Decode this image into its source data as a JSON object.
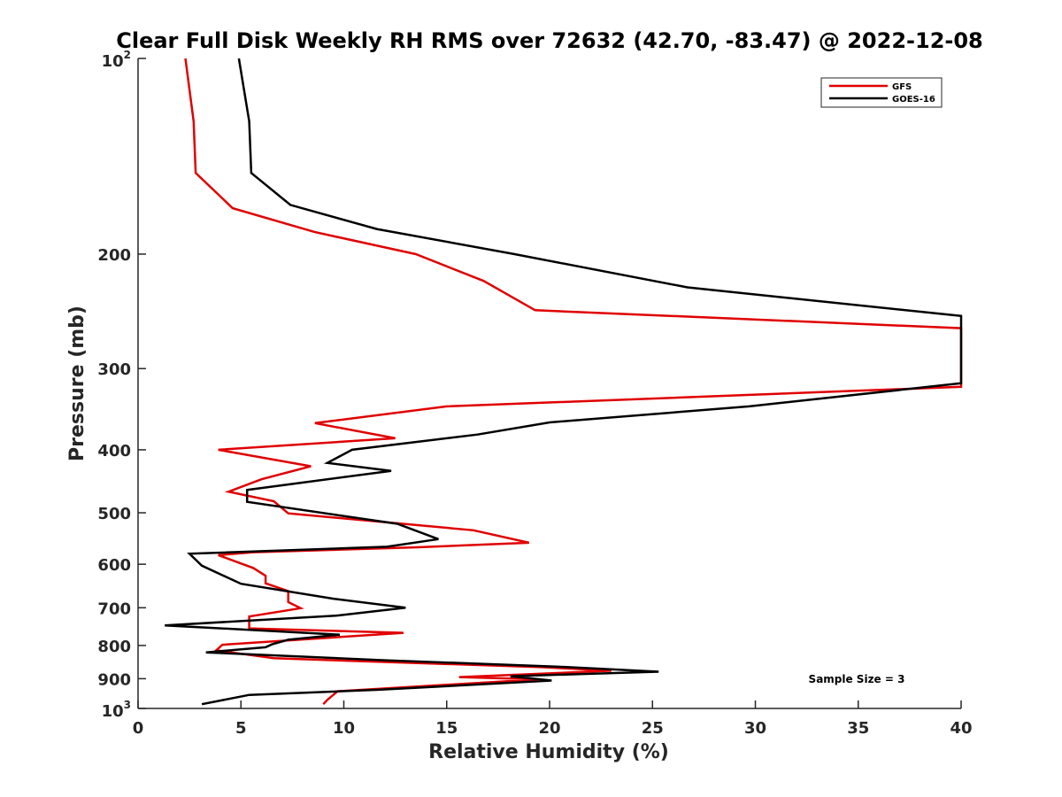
{
  "chart_data": {
    "type": "line",
    "title": "Clear Full Disk Weekly RH RMS over 72632 (42.70, -83.47) @ 2022-12-08",
    "xlabel": "Relative Humidity (%)",
    "ylabel": "Pressure (mb)",
    "xlim": [
      0,
      40
    ],
    "ylim": [
      100,
      1000
    ],
    "y_scale": "log",
    "y_reversed": true,
    "grid": false,
    "legend_position": "top-right",
    "x_ticks": [
      "0",
      "5",
      "10",
      "15",
      "20",
      "25",
      "30",
      "35",
      "40"
    ],
    "y_ticks": [
      {
        "value": 100,
        "base": "10",
        "exp": "2"
      },
      {
        "value": 200,
        "label": "200"
      },
      {
        "value": 300,
        "label": "300"
      },
      {
        "value": 400,
        "label": "400"
      },
      {
        "value": 500,
        "label": "500"
      },
      {
        "value": 600,
        "label": "600"
      },
      {
        "value": 700,
        "label": "700"
      },
      {
        "value": 800,
        "label": "800"
      },
      {
        "value": 900,
        "label": "900"
      },
      {
        "value": 1000,
        "base": "10",
        "exp": "3"
      }
    ],
    "annotation": "Sample Size = 3",
    "series": [
      {
        "name": "GFS",
        "color": "#e00000",
        "points": [
          {
            "x": 2.3,
            "y": 100
          },
          {
            "x": 2.7,
            "y": 125
          },
          {
            "x": 2.8,
            "y": 150
          },
          {
            "x": 4.6,
            "y": 170
          },
          {
            "x": 8.6,
            "y": 185
          },
          {
            "x": 13.5,
            "y": 200
          },
          {
            "x": 16.8,
            "y": 220
          },
          {
            "x": 19.3,
            "y": 244
          },
          {
            "x": 40.0,
            "y": 260
          },
          {
            "x": 40.0,
            "y": 320
          },
          {
            "x": 15.0,
            "y": 343
          },
          {
            "x": 8.6,
            "y": 364
          },
          {
            "x": 12.5,
            "y": 384
          },
          {
            "x": 3.9,
            "y": 400
          },
          {
            "x": 8.4,
            "y": 424
          },
          {
            "x": 6.0,
            "y": 444
          },
          {
            "x": 4.4,
            "y": 464
          },
          {
            "x": 6.6,
            "y": 480
          },
          {
            "x": 7.3,
            "y": 501
          },
          {
            "x": 16.3,
            "y": 532
          },
          {
            "x": 19.0,
            "y": 556
          },
          {
            "x": 13.6,
            "y": 565
          },
          {
            "x": 5.6,
            "y": 575
          },
          {
            "x": 3.9,
            "y": 581
          },
          {
            "x": 5.6,
            "y": 608
          },
          {
            "x": 6.2,
            "y": 625
          },
          {
            "x": 6.2,
            "y": 642
          },
          {
            "x": 7.3,
            "y": 660
          },
          {
            "x": 7.3,
            "y": 686
          },
          {
            "x": 7.9,
            "y": 701
          },
          {
            "x": 5.4,
            "y": 722
          },
          {
            "x": 5.4,
            "y": 742
          },
          {
            "x": 5.4,
            "y": 753
          },
          {
            "x": 12.9,
            "y": 765
          },
          {
            "x": 4.1,
            "y": 798
          },
          {
            "x": 3.8,
            "y": 814
          },
          {
            "x": 6.6,
            "y": 837
          },
          {
            "x": 19.6,
            "y": 864
          },
          {
            "x": 23.0,
            "y": 875
          },
          {
            "x": 15.6,
            "y": 895
          },
          {
            "x": 19.5,
            "y": 902
          },
          {
            "x": 9.7,
            "y": 941
          },
          {
            "x": 9.2,
            "y": 970
          },
          {
            "x": 9.0,
            "y": 985
          }
        ]
      },
      {
        "name": "GOES-16",
        "color": "#000000",
        "points": [
          {
            "x": 4.9,
            "y": 100
          },
          {
            "x": 5.4,
            "y": 125
          },
          {
            "x": 5.5,
            "y": 150
          },
          {
            "x": 7.4,
            "y": 168
          },
          {
            "x": 11.6,
            "y": 183
          },
          {
            "x": 18.3,
            "y": 200
          },
          {
            "x": 26.7,
            "y": 225
          },
          {
            "x": 40.0,
            "y": 249
          },
          {
            "x": 40.0,
            "y": 316
          },
          {
            "x": 29.7,
            "y": 343
          },
          {
            "x": 20.0,
            "y": 363
          },
          {
            "x": 16.5,
            "y": 379
          },
          {
            "x": 10.4,
            "y": 400
          },
          {
            "x": 9.2,
            "y": 419
          },
          {
            "x": 12.3,
            "y": 431
          },
          {
            "x": 5.3,
            "y": 461
          },
          {
            "x": 5.3,
            "y": 481
          },
          {
            "x": 12.6,
            "y": 520
          },
          {
            "x": 14.6,
            "y": 549
          },
          {
            "x": 12.1,
            "y": 564
          },
          {
            "x": 2.5,
            "y": 578
          },
          {
            "x": 3.1,
            "y": 603
          },
          {
            "x": 5.0,
            "y": 643
          },
          {
            "x": 9.5,
            "y": 678
          },
          {
            "x": 13.0,
            "y": 700
          },
          {
            "x": 9.6,
            "y": 720
          },
          {
            "x": 1.3,
            "y": 745
          },
          {
            "x": 9.8,
            "y": 770
          },
          {
            "x": 7.3,
            "y": 784
          },
          {
            "x": 6.5,
            "y": 797
          },
          {
            "x": 6.2,
            "y": 805
          },
          {
            "x": 3.3,
            "y": 820
          },
          {
            "x": 12.0,
            "y": 843
          },
          {
            "x": 20.3,
            "y": 862
          },
          {
            "x": 25.3,
            "y": 878
          },
          {
            "x": 18.1,
            "y": 892
          },
          {
            "x": 20.1,
            "y": 906
          },
          {
            "x": 11.7,
            "y": 936
          },
          {
            "x": 5.4,
            "y": 953
          },
          {
            "x": 3.1,
            "y": 985
          }
        ]
      }
    ]
  }
}
